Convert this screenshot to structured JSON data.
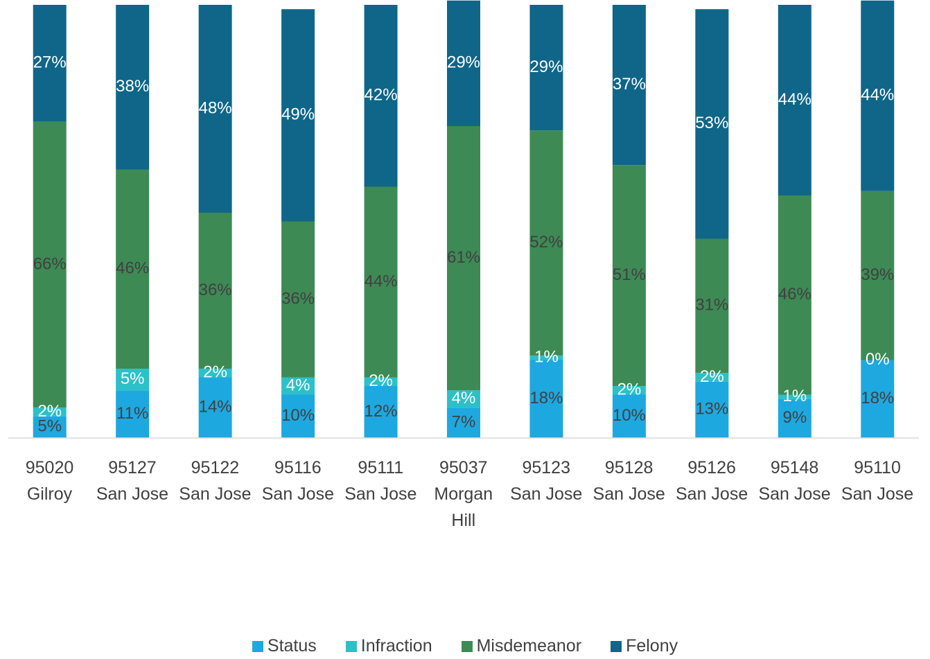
{
  "chart_data": {
    "type": "stacked_bar",
    "categories": [
      "95020\nGilroy",
      "95127\nSan Jose",
      "95122\nSan Jose",
      "95116\nSan Jose",
      "95111\nSan Jose",
      "95037\nMorgan\nHill",
      "95123\nSan Jose",
      "95128\nSan Jose",
      "95126\nSan Jose",
      "95148\nSan Jose",
      "95110\nSan Jose"
    ],
    "ylim": [
      0,
      100
    ],
    "legend": "bottom",
    "series": [
      {
        "name": "Status",
        "color": "#1ea8e0",
        "label_color": "#404040",
        "values": [
          5,
          11,
          14,
          10,
          12,
          7,
          18,
          10,
          13,
          9,
          18
        ],
        "value_labels": [
          "5%",
          "11%",
          "14%",
          "10%",
          "12%",
          "7%",
          "18%",
          "10%",
          "13%",
          "9%",
          "18%"
        ]
      },
      {
        "name": "Infraction",
        "color": "#2cc0c8",
        "label_color": "#ffffff",
        "values": [
          2,
          5,
          2,
          4,
          2,
          4,
          1,
          2,
          2,
          1,
          0
        ],
        "value_labels": [
          "2%",
          "5%",
          "2%",
          "4%",
          "2%",
          "4%",
          "1%",
          "2%",
          "2%",
          "1%",
          "0%"
        ]
      },
      {
        "name": "Misdemeanor",
        "color": "#3d8a55",
        "label_color": "#404040",
        "values": [
          66,
          46,
          36,
          36,
          44,
          61,
          52,
          51,
          31,
          46,
          39
        ],
        "value_labels": [
          "66%",
          "46%",
          "36%",
          "36%",
          "44%",
          "61%",
          "52%",
          "51%",
          "31%",
          "46%",
          "39%"
        ]
      },
      {
        "name": "Felony",
        "color": "#0f6688",
        "label_color": "#ffffff",
        "values": [
          27,
          38,
          48,
          49,
          42,
          29,
          29,
          37,
          53,
          44,
          44
        ],
        "value_labels": [
          "27%",
          "38%",
          "48%",
          "49%",
          "42%",
          "29%",
          "29%",
          "37%",
          "53%",
          "44%",
          "44%"
        ]
      }
    ]
  }
}
